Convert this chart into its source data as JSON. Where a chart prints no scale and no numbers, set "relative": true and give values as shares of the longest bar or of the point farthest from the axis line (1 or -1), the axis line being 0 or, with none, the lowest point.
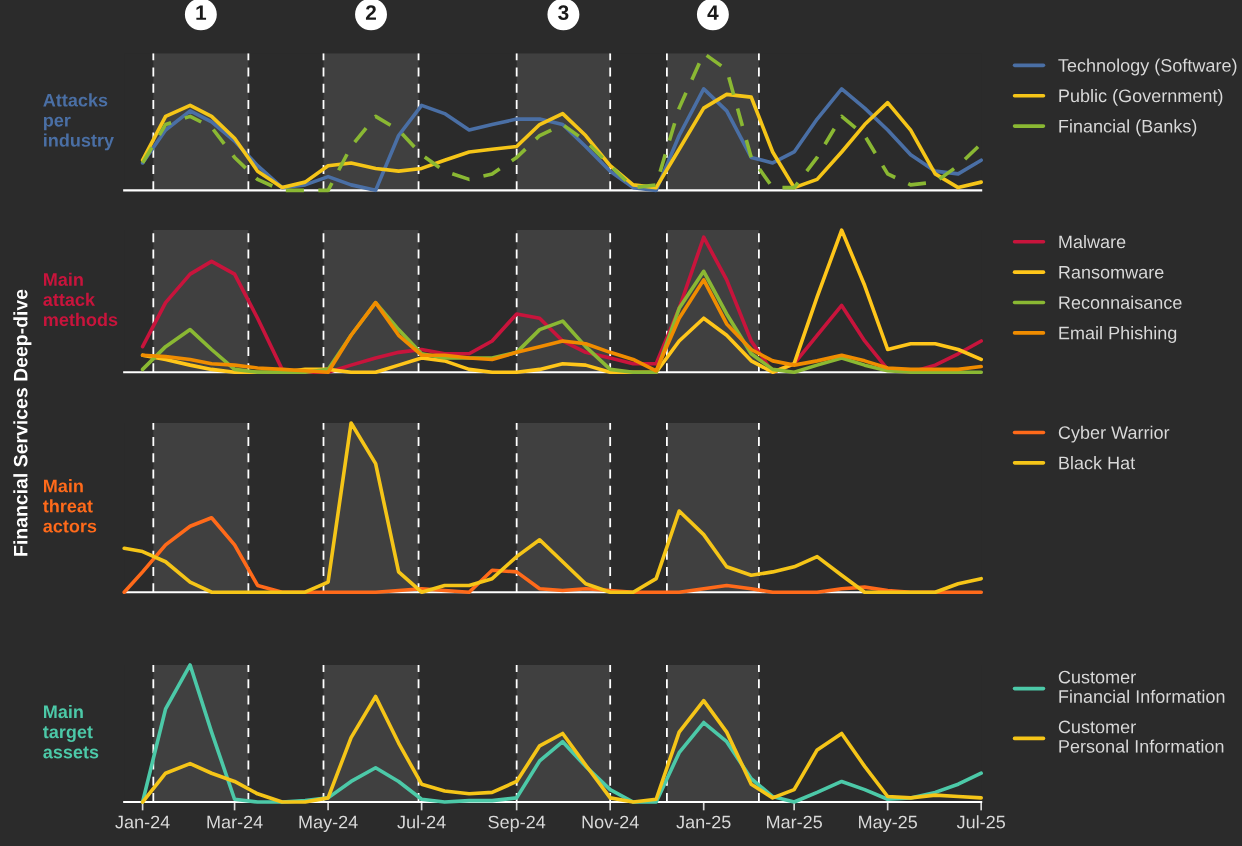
{
  "chart_data": [
    {
      "type": "line",
      "ylabel": "Attacks\nper\nindustry",
      "relative": true,
      "legend": "right",
      "tick_labels": false,
      "annotations": [
        "Financial Services Deep-dive"
      ],
      "x": [
        "2024-01-01",
        "2024-01-16",
        "2024-02-01",
        "2024-02-15",
        "2024-03-01",
        "2024-03-16",
        "2024-04-01",
        "2024-04-16",
        "2024-05-01",
        "2024-05-16",
        "2024-06-01",
        "2024-06-16",
        "2024-07-01",
        "2024-07-16",
        "2024-08-01",
        "2024-08-16",
        "2024-09-01",
        "2024-09-16",
        "2024-10-01",
        "2024-10-16",
        "2024-11-01",
        "2024-11-16",
        "2024-12-01",
        "2024-12-16",
        "2025-01-01",
        "2025-01-16",
        "2025-02-01",
        "2025-02-15",
        "2025-03-01",
        "2025-03-16",
        "2025-04-01",
        "2025-04-16",
        "2025-05-01",
        "2025-05-16",
        "2025-06-01",
        "2025-06-16",
        "2025-07-01"
      ],
      "xlim": [
        "2023-12-20",
        "2025-07-01"
      ],
      "series": [
        {
          "name": "Technology (Software)",
          "color": "#4a6fa5",
          "values": [
            0.2,
            0.44,
            0.58,
            0.5,
            0.36,
            0.18,
            0.02,
            0.04,
            0.1,
            0.04,
            0,
            0.4,
            0.62,
            0.56,
            0.44,
            0.48,
            0.52,
            0.52,
            0.48,
            0.32,
            0.14,
            0.02,
            0,
            0.4,
            0.74,
            0.58,
            0.24,
            0.2,
            0.28,
            0.52,
            0.74,
            0.6,
            0.44,
            0.26,
            0.14,
            0.12,
            0.22
          ]
        },
        {
          "name": "Public (Government)",
          "color": "#f5c518",
          "values": [
            0.22,
            0.54,
            0.62,
            0.54,
            0.38,
            0.14,
            0.02,
            0.06,
            0.18,
            0.2,
            0.16,
            0.14,
            0.16,
            0.22,
            0.28,
            0.3,
            0.32,
            0.48,
            0.56,
            0.4,
            0.18,
            0.04,
            0.02,
            0.3,
            0.6,
            0.7,
            0.68,
            0.28,
            0.02,
            0.08,
            0.28,
            0.48,
            0.64,
            0.44,
            0.12,
            0.02,
            0.06
          ]
        },
        {
          "name": "Financial (Banks)",
          "color": "#8ab833",
          "line_style": "dashed",
          "values": [
            0.2,
            0.48,
            0.54,
            0.46,
            0.24,
            0.08,
            0,
            0,
            0,
            0.32,
            0.54,
            0.44,
            0.26,
            0.14,
            0.08,
            0.12,
            0.24,
            0.4,
            0.48,
            0.36,
            0.18,
            0.02,
            0.04,
            0.6,
            1,
            0.88,
            0.24,
            0.02,
            0.02,
            0.24,
            0.54,
            0.4,
            0.12,
            0.04,
            0.06,
            0.18,
            0.34
          ]
        }
      ],
      "bands": [
        {
          "axis": "x",
          "from": "2024-01-08",
          "to": "2024-03-10",
          "label": "1",
          "color": "#404040"
        },
        {
          "axis": "x",
          "from": "2024-04-28",
          "to": "2024-06-29",
          "label": "2",
          "color": "#404040"
        },
        {
          "axis": "x",
          "from": "2024-09-01",
          "to": "2024-11-01",
          "label": "3",
          "color": "#404040"
        },
        {
          "axis": "x",
          "from": "2024-12-08",
          "to": "2025-02-06",
          "label": "4",
          "color": "#404040"
        }
      ],
      "ref_lines": [
        {
          "axis": "x",
          "value": "2024-01-08",
          "line_style": "dashed",
          "color": "#ffffff"
        },
        {
          "axis": "x",
          "value": "2024-03-10",
          "line_style": "dashed",
          "color": "#ffffff"
        },
        {
          "axis": "x",
          "value": "2024-04-28",
          "line_style": "dashed",
          "color": "#ffffff"
        },
        {
          "axis": "x",
          "value": "2024-06-29",
          "line_style": "dashed",
          "color": "#ffffff"
        },
        {
          "axis": "x",
          "value": "2024-09-01",
          "line_style": "dashed",
          "color": "#ffffff"
        },
        {
          "axis": "x",
          "value": "2024-11-01",
          "line_style": "dashed",
          "color": "#ffffff"
        },
        {
          "axis": "x",
          "value": "2024-12-08",
          "line_style": "dashed",
          "color": "#ffffff"
        },
        {
          "axis": "x",
          "value": "2025-02-06",
          "line_style": "dashed",
          "color": "#ffffff"
        }
      ]
    },
    {
      "type": "line",
      "ylabel": "Main\nattack\nmethods",
      "relative": true,
      "legend": "right",
      "tick_labels": false,
      "x": [
        "2024-01-01",
        "2024-01-16",
        "2024-02-01",
        "2024-02-15",
        "2024-03-01",
        "2024-03-16",
        "2024-04-01",
        "2024-04-16",
        "2024-05-01",
        "2024-05-16",
        "2024-06-01",
        "2024-06-16",
        "2024-07-01",
        "2024-07-16",
        "2024-08-01",
        "2024-08-16",
        "2024-09-01",
        "2024-09-16",
        "2024-10-01",
        "2024-10-16",
        "2024-11-01",
        "2024-11-16",
        "2024-12-01",
        "2024-12-16",
        "2025-01-01",
        "2025-01-16",
        "2025-02-01",
        "2025-02-15",
        "2025-03-01",
        "2025-03-16",
        "2025-04-01",
        "2025-04-16",
        "2025-05-01",
        "2025-05-16",
        "2025-06-01",
        "2025-06-16",
        "2025-07-01"
      ],
      "xlim": [
        "2023-12-20",
        "2025-07-01"
      ],
      "series": [
        {
          "name": "Malware",
          "color": "#c8143c",
          "values": [
            0.18,
            0.49,
            0.69,
            0.78,
            0.69,
            0.38,
            0.02,
            0,
            0,
            0.05,
            0.1,
            0.14,
            0.16,
            0.13,
            0.13,
            0.22,
            0.41,
            0.38,
            0.22,
            0.14,
            0.1,
            0.06,
            0.06,
            0.45,
            0.95,
            0.65,
            0.22,
            0,
            0.06,
            0.26,
            0.47,
            0.22,
            0.02,
            0,
            0.05,
            0.13,
            0.22
          ]
        },
        {
          "name": "Ransomware",
          "color": "#ffc61a",
          "values": [
            0.12,
            0.09,
            0.05,
            0.02,
            0,
            0,
            0,
            0.02,
            0.02,
            0,
            0,
            0.05,
            0.1,
            0.08,
            0.02,
            0,
            0,
            0.02,
            0.06,
            0.05,
            0,
            0,
            0,
            0.22,
            0.38,
            0.26,
            0.08,
            0,
            0.06,
            0.53,
            1,
            0.61,
            0.16,
            0.2,
            0.2,
            0.16,
            0.09
          ]
        },
        {
          "name": "Reconnaisance",
          "color": "#8ab833",
          "values": [
            0.02,
            0.18,
            0.3,
            0.16,
            0.02,
            0,
            0,
            0,
            0.02,
            0.26,
            0.49,
            0.3,
            0.13,
            0.1,
            0.1,
            0.1,
            0.14,
            0.3,
            0.36,
            0.18,
            0.02,
            0,
            0,
            0.45,
            0.71,
            0.41,
            0.13,
            0.02,
            0,
            0.05,
            0.1,
            0.05,
            0.01,
            0,
            0,
            0,
            0
          ]
        },
        {
          "name": "Email Phishing",
          "color": "#f08c00",
          "values": [
            0.12,
            0.11,
            0.09,
            0.06,
            0.05,
            0.03,
            0.02,
            0.01,
            0,
            0.26,
            0.49,
            0.26,
            0.12,
            0.12,
            0.1,
            0.09,
            0.14,
            0.18,
            0.22,
            0.2,
            0.14,
            0.09,
            0.01,
            0.38,
            0.65,
            0.34,
            0.16,
            0.08,
            0.05,
            0.08,
            0.12,
            0.08,
            0.03,
            0.02,
            0.02,
            0.02,
            0.04
          ]
        }
      ],
      "bands": [
        {
          "axis": "x",
          "from": "2024-01-08",
          "to": "2024-03-10",
          "color": "#404040"
        },
        {
          "axis": "x",
          "from": "2024-04-28",
          "to": "2024-06-29",
          "color": "#404040"
        },
        {
          "axis": "x",
          "from": "2024-09-01",
          "to": "2024-11-01",
          "color": "#404040"
        },
        {
          "axis": "x",
          "from": "2024-12-08",
          "to": "2025-02-06",
          "color": "#404040"
        }
      ],
      "ref_lines": [
        {
          "axis": "x",
          "value": "2024-01-08",
          "line_style": "dashed",
          "color": "#ffffff"
        },
        {
          "axis": "x",
          "value": "2024-03-10",
          "line_style": "dashed",
          "color": "#ffffff"
        },
        {
          "axis": "x",
          "value": "2024-04-28",
          "line_style": "dashed",
          "color": "#ffffff"
        },
        {
          "axis": "x",
          "value": "2024-06-29",
          "line_style": "dashed",
          "color": "#ffffff"
        },
        {
          "axis": "x",
          "value": "2024-09-01",
          "line_style": "dashed",
          "color": "#ffffff"
        },
        {
          "axis": "x",
          "value": "2024-11-01",
          "line_style": "dashed",
          "color": "#ffffff"
        },
        {
          "axis": "x",
          "value": "2024-12-08",
          "line_style": "dashed",
          "color": "#ffffff"
        },
        {
          "axis": "x",
          "value": "2025-02-06",
          "line_style": "dashed",
          "color": "#ffffff"
        }
      ]
    },
    {
      "type": "line",
      "ylabel": "Main\nthreat\nactors",
      "relative": true,
      "legend": "right",
      "tick_labels": false,
      "x": [
        "2023-12-20",
        "2024-01-01",
        "2024-01-16",
        "2024-02-01",
        "2024-02-15",
        "2024-03-01",
        "2024-03-16",
        "2024-04-01",
        "2024-04-16",
        "2024-05-01",
        "2024-05-16",
        "2024-06-01",
        "2024-06-16",
        "2024-07-01",
        "2024-07-16",
        "2024-08-01",
        "2024-08-16",
        "2024-09-01",
        "2024-09-16",
        "2024-10-01",
        "2024-10-16",
        "2024-11-01",
        "2024-11-16",
        "2024-12-01",
        "2024-12-16",
        "2025-01-01",
        "2025-01-16",
        "2025-02-01",
        "2025-02-15",
        "2025-03-01",
        "2025-03-16",
        "2025-04-01",
        "2025-04-16",
        "2025-05-01",
        "2025-05-16",
        "2025-06-01",
        "2025-06-16",
        "2025-07-01"
      ],
      "xlim": [
        "2023-12-20",
        "2025-07-01"
      ],
      "series": [
        {
          "name": "Cyber Warrior",
          "color": "#ff6a1a",
          "values": [
            0,
            0.12,
            0.28,
            0.39,
            0.44,
            0.28,
            0.04,
            0,
            0,
            0,
            0,
            0,
            0.01,
            0.02,
            0.01,
            0,
            0.13,
            0.12,
            0.02,
            0.01,
            0.02,
            0.01,
            0,
            0,
            0,
            0.02,
            0.04,
            0.02,
            0,
            0,
            0,
            0.02,
            0.03,
            0.01,
            0,
            0,
            0,
            0
          ]
        },
        {
          "name": "Black Hat",
          "color": "#f5c518",
          "values": [
            0.26,
            0.24,
            0.18,
            0.06,
            0,
            0,
            0,
            0,
            0,
            0.06,
            1,
            0.76,
            0.12,
            0,
            0.04,
            0.04,
            0.08,
            0.21,
            0.31,
            0.18,
            0.05,
            0,
            0,
            0.08,
            0.48,
            0.34,
            0.15,
            0.1,
            0.12,
            0.15,
            0.21,
            0.1,
            0,
            0,
            0,
            0,
            0.05,
            0.08
          ]
        }
      ],
      "bands": [
        {
          "axis": "x",
          "from": "2024-01-08",
          "to": "2024-03-10",
          "color": "#404040"
        },
        {
          "axis": "x",
          "from": "2024-04-28",
          "to": "2024-06-29",
          "color": "#404040"
        },
        {
          "axis": "x",
          "from": "2024-09-01",
          "to": "2024-11-01",
          "color": "#404040"
        },
        {
          "axis": "x",
          "from": "2024-12-08",
          "to": "2025-02-06",
          "color": "#404040"
        }
      ],
      "ref_lines": [
        {
          "axis": "x",
          "value": "2024-01-08",
          "line_style": "dashed",
          "color": "#ffffff"
        },
        {
          "axis": "x",
          "value": "2024-03-10",
          "line_style": "dashed",
          "color": "#ffffff"
        },
        {
          "axis": "x",
          "value": "2024-04-28",
          "line_style": "dashed",
          "color": "#ffffff"
        },
        {
          "axis": "x",
          "value": "2024-06-29",
          "line_style": "dashed",
          "color": "#ffffff"
        },
        {
          "axis": "x",
          "value": "2024-09-01",
          "line_style": "dashed",
          "color": "#ffffff"
        },
        {
          "axis": "x",
          "value": "2024-11-01",
          "line_style": "dashed",
          "color": "#ffffff"
        },
        {
          "axis": "x",
          "value": "2024-12-08",
          "line_style": "dashed",
          "color": "#ffffff"
        },
        {
          "axis": "x",
          "value": "2025-02-06",
          "line_style": "dashed",
          "color": "#ffffff"
        }
      ]
    },
    {
      "type": "line",
      "ylabel": "Main\ntarget\nassets",
      "relative": true,
      "legend": "right",
      "tick_labels": "x",
      "x": [
        "2024-01-01",
        "2024-01-16",
        "2024-02-01",
        "2024-02-15",
        "2024-03-01",
        "2024-03-16",
        "2024-04-01",
        "2024-04-16",
        "2024-05-01",
        "2024-05-16",
        "2024-06-01",
        "2024-06-16",
        "2024-07-01",
        "2024-07-16",
        "2024-08-01",
        "2024-08-16",
        "2024-09-01",
        "2024-09-16",
        "2024-10-01",
        "2024-10-16",
        "2024-11-01",
        "2024-11-16",
        "2024-12-01",
        "2024-12-16",
        "2025-01-01",
        "2025-01-16",
        "2025-02-01",
        "2025-02-15",
        "2025-03-01",
        "2025-03-16",
        "2025-04-01",
        "2025-04-16",
        "2025-05-01",
        "2025-05-16",
        "2025-06-01",
        "2025-06-16",
        "2025-07-01"
      ],
      "xlim": [
        "2023-12-20",
        "2025-07-01"
      ],
      "xticks": [
        {
          "value": "2024-01-01",
          "label": "Jan-24"
        },
        {
          "value": "2024-03-01",
          "label": "Mar-24"
        },
        {
          "value": "2024-05-01",
          "label": "May-24"
        },
        {
          "value": "2024-07-01",
          "label": "Jul-24"
        },
        {
          "value": "2024-09-01",
          "label": "Sep-24"
        },
        {
          "value": "2024-11-01",
          "label": "Nov-24"
        },
        {
          "value": "2025-01-01",
          "label": "Jan-25"
        },
        {
          "value": "2025-03-01",
          "label": "Mar-25"
        },
        {
          "value": "2025-05-01",
          "label": "May-25"
        },
        {
          "value": "2025-07-01",
          "label": "Jul-25"
        }
      ],
      "series": [
        {
          "name": "Customer\nFinancial Information",
          "color": "#4cc9a8",
          "values": [
            0,
            0.68,
            1,
            0.51,
            0.02,
            0,
            0,
            0.01,
            0.03,
            0.15,
            0.25,
            0.15,
            0.02,
            0,
            0.01,
            0.01,
            0.03,
            0.3,
            0.44,
            0.26,
            0.09,
            0,
            0,
            0.36,
            0.58,
            0.44,
            0.17,
            0.04,
            0,
            0.07,
            0.15,
            0.09,
            0.02,
            0.03,
            0.07,
            0.13,
            0.21
          ]
        },
        {
          "name": "Customer\nPersonal Information",
          "color": "#f5c518",
          "values": [
            0,
            0.21,
            0.28,
            0.21,
            0.15,
            0.06,
            0,
            0,
            0.03,
            0.47,
            0.77,
            0.43,
            0.13,
            0.08,
            0.06,
            0.07,
            0.15,
            0.41,
            0.5,
            0.27,
            0.03,
            0,
            0.02,
            0.51,
            0.74,
            0.51,
            0.13,
            0.03,
            0.09,
            0.38,
            0.5,
            0.26,
            0.04,
            0.03,
            0.05,
            0.04,
            0.03
          ]
        }
      ],
      "bands": [
        {
          "axis": "x",
          "from": "2024-01-08",
          "to": "2024-03-10",
          "color": "#404040"
        },
        {
          "axis": "x",
          "from": "2024-04-28",
          "to": "2024-06-29",
          "color": "#404040"
        },
        {
          "axis": "x",
          "from": "2024-09-01",
          "to": "2024-11-01",
          "color": "#404040"
        },
        {
          "axis": "x",
          "from": "2024-12-08",
          "to": "2025-02-06",
          "color": "#404040"
        }
      ],
      "ref_lines": [
        {
          "axis": "x",
          "value": "2024-01-08",
          "line_style": "dashed",
          "color": "#ffffff"
        },
        {
          "axis": "x",
          "value": "2024-03-10",
          "line_style": "dashed",
          "color": "#ffffff"
        },
        {
          "axis": "x",
          "value": "2024-04-28",
          "line_style": "dashed",
          "color": "#ffffff"
        },
        {
          "axis": "x",
          "value": "2024-06-29",
          "line_style": "dashed",
          "color": "#ffffff"
        },
        {
          "axis": "x",
          "value": "2024-09-01",
          "line_style": "dashed",
          "color": "#ffffff"
        },
        {
          "axis": "x",
          "value": "2024-11-01",
          "line_style": "dashed",
          "color": "#ffffff"
        },
        {
          "axis": "x",
          "value": "2024-12-08",
          "line_style": "dashed",
          "color": "#ffffff"
        },
        {
          "axis": "x",
          "value": "2025-02-06",
          "line_style": "dashed",
          "color": "#ffffff"
        }
      ]
    }
  ]
}
